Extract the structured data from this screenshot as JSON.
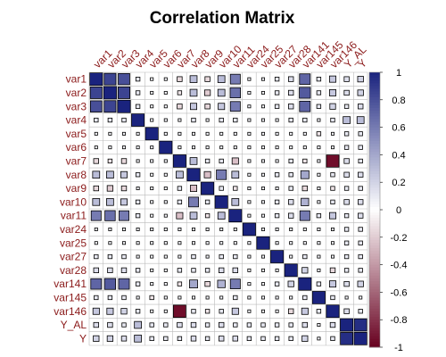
{
  "chart_data": {
    "type": "heatmap",
    "title": "Correlation Matrix",
    "method": "square",
    "variables": [
      "var1",
      "var2",
      "var3",
      "var4",
      "var5",
      "var6",
      "var7",
      "var8",
      "var9",
      "var10",
      "var11",
      "var24",
      "var25",
      "var27",
      "var28",
      "var141",
      "var145",
      "var146",
      "Y_AL",
      "Y"
    ],
    "matrix": [
      [
        1,
        0.85,
        0.8,
        0.1,
        0.05,
        0.05,
        -0.15,
        0.3,
        -0.15,
        0.3,
        0.6,
        0.05,
        0.05,
        0.1,
        0.15,
        0.7,
        0.1,
        0.25,
        0.15,
        0.2
      ],
      [
        0.85,
        1,
        0.85,
        0.1,
        0.05,
        0.05,
        -0.1,
        0.3,
        -0.2,
        0.3,
        0.65,
        0.05,
        0.05,
        0.1,
        0.15,
        0.75,
        0.1,
        0.25,
        0.15,
        0.2
      ],
      [
        0.8,
        0.85,
        1,
        0.1,
        0.05,
        0.05,
        -0.15,
        0.25,
        -0.15,
        0.25,
        0.6,
        0.05,
        0.05,
        0.1,
        0.15,
        0.7,
        0.1,
        0.2,
        0.1,
        0.15
      ],
      [
        0.1,
        0.1,
        0.1,
        1,
        0.05,
        0.05,
        0.05,
        0.1,
        0.05,
        0.1,
        0.1,
        0.05,
        0.05,
        0.05,
        0.1,
        0.1,
        0.05,
        0.1,
        0.3,
        0.3
      ],
      [
        0.05,
        0.05,
        0.05,
        0.05,
        1,
        0.05,
        0.05,
        0.05,
        0.05,
        0.05,
        0.05,
        0.05,
        0.05,
        0.05,
        0.05,
        0.05,
        -0.1,
        0.05,
        0.1,
        0.1
      ],
      [
        0.05,
        0.05,
        0.05,
        0.05,
        0.05,
        1,
        0.05,
        0.05,
        0.05,
        0.05,
        0.05,
        0.05,
        0.05,
        0.05,
        0.05,
        0.05,
        0.05,
        0.05,
        0.1,
        0.1
      ],
      [
        -0.15,
        -0.1,
        -0.15,
        0.05,
        0.05,
        0.05,
        1,
        0.3,
        0.1,
        0.1,
        -0.25,
        0.05,
        0.05,
        0.05,
        0.1,
        -0.1,
        0.05,
        -0.95,
        0.15,
        0.1
      ],
      [
        0.3,
        0.3,
        0.25,
        0.1,
        0.05,
        0.05,
        0.3,
        1,
        -0.25,
        0.6,
        0.3,
        0.05,
        0.05,
        0.1,
        0.1,
        0.4,
        0.05,
        0.1,
        0.15,
        0.15
      ],
      [
        -0.15,
        -0.2,
        -0.15,
        0.05,
        0.05,
        0.05,
        0.1,
        -0.25,
        1,
        0.1,
        -0.1,
        0.05,
        0.05,
        0.05,
        0.1,
        -0.15,
        0.05,
        -0.1,
        0.1,
        0.1
      ],
      [
        0.3,
        0.3,
        0.25,
        0.1,
        0.05,
        0.05,
        0.1,
        0.6,
        0.1,
        1,
        0.3,
        0.05,
        0.05,
        0.1,
        0.15,
        0.35,
        0.05,
        0.1,
        0.15,
        0.15
      ],
      [
        0.6,
        0.65,
        0.6,
        0.1,
        0.05,
        0.05,
        -0.25,
        0.3,
        -0.1,
        0.3,
        1,
        0.05,
        0.05,
        0.1,
        0.15,
        0.6,
        0.1,
        0.25,
        0.1,
        0.15
      ],
      [
        0.05,
        0.05,
        0.05,
        0.05,
        0.05,
        0.05,
        0.05,
        0.05,
        0.05,
        0.05,
        0.05,
        1,
        0.05,
        0.05,
        0.05,
        0.05,
        0.05,
        0.05,
        0.1,
        0.1
      ],
      [
        0.05,
        0.05,
        0.05,
        0.05,
        0.05,
        0.05,
        0.05,
        0.05,
        0.05,
        0.05,
        0.05,
        0.05,
        1,
        0.05,
        0.05,
        0.05,
        0.05,
        0.05,
        0.1,
        0.1
      ],
      [
        0.1,
        0.1,
        0.1,
        0.05,
        0.05,
        0.05,
        0.05,
        0.1,
        0.05,
        0.1,
        0.1,
        0.05,
        0.05,
        1,
        0.05,
        0.1,
        0.05,
        0.05,
        0.1,
        0.1
      ],
      [
        0.15,
        0.15,
        0.15,
        0.1,
        0.05,
        0.05,
        0.1,
        0.1,
        0.1,
        0.15,
        0.15,
        0.05,
        0.05,
        0.05,
        1,
        0.2,
        0.05,
        -0.15,
        0.1,
        0.1
      ],
      [
        0.7,
        0.75,
        0.7,
        0.1,
        0.05,
        0.05,
        -0.1,
        0.4,
        -0.15,
        0.35,
        0.6,
        0.05,
        0.05,
        0.1,
        0.2,
        1,
        0.1,
        0.25,
        0.15,
        0.2
      ],
      [
        0.1,
        0.1,
        0.1,
        0.05,
        -0.1,
        0.05,
        0.05,
        0.05,
        0.05,
        0.05,
        0.1,
        0.05,
        0.05,
        0.05,
        0.05,
        0.1,
        1,
        0.1,
        0.05,
        0.05
      ],
      [
        0.25,
        0.25,
        0.2,
        0.1,
        0.05,
        0.05,
        -0.95,
        0.1,
        -0.1,
        0.1,
        0.25,
        0.05,
        0.05,
        0.05,
        -0.15,
        0.25,
        0.1,
        1,
        0.15,
        0.1
      ],
      [
        0.15,
        0.15,
        0.1,
        0.3,
        0.1,
        0.1,
        0.15,
        0.15,
        0.1,
        0.15,
        0.1,
        0.1,
        0.1,
        0.1,
        0.1,
        0.15,
        0.05,
        0.15,
        1,
        0.95
      ],
      [
        0.2,
        0.2,
        0.15,
        0.3,
        0.1,
        0.1,
        0.1,
        0.15,
        0.1,
        0.15,
        0.15,
        0.1,
        0.1,
        0.1,
        0.1,
        0.2,
        0.05,
        0.1,
        0.95,
        1
      ]
    ],
    "colorbar": {
      "range": [
        -1,
        1
      ],
      "ticks": [
        "1",
        "0.8",
        "0.6",
        "0.4",
        "0.2",
        "0",
        "-0.2",
        "-0.4",
        "-0.6",
        "-0.8",
        "-1"
      ],
      "colors": {
        "negative": "#67001f",
        "zero": "#ffffff",
        "positive": "#1a237e"
      }
    },
    "grid": true
  }
}
